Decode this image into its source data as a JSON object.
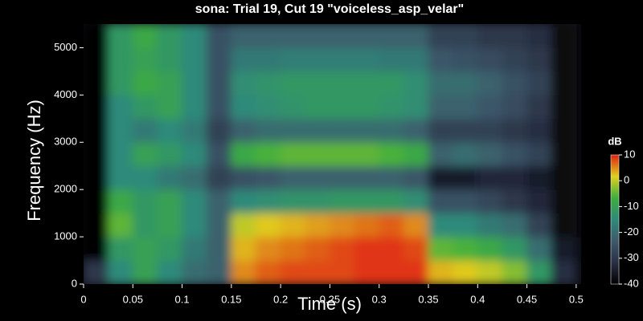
{
  "chart_data": {
    "type": "heatmap",
    "title": "sona: Trial 19, Cut 19 \"voiceless_asp_velar\"",
    "xlabel": "Time (s)",
    "ylabel": "Frequency (Hz)",
    "xlim": [
      0,
      0.505
    ],
    "ylim": [
      0,
      5500
    ],
    "xticks": [
      0,
      0.05,
      0.1,
      0.15,
      0.2,
      0.25,
      0.3,
      0.35,
      0.4,
      0.45,
      0.5
    ],
    "yticks": [
      0,
      1000,
      2000,
      3000,
      4000,
      5000
    ],
    "x": [
      0.0125,
      0.0375,
      0.0625,
      0.0875,
      0.1125,
      0.1375,
      0.1625,
      0.1875,
      0.2125,
      0.2375,
      0.2625,
      0.2875,
      0.3125,
      0.3375,
      0.3625,
      0.3875,
      0.4125,
      0.4375,
      0.4625,
      0.4875
    ],
    "y": [
      250,
      750,
      1250,
      1750,
      2250,
      2750,
      3250,
      3750,
      4250,
      4750,
      5250
    ],
    "z": [
      [
        -30,
        -15,
        -10,
        -15,
        -20,
        -22,
        5,
        7,
        8,
        8,
        8,
        9,
        9,
        9,
        3,
        2,
        0,
        -3,
        -12,
        -32
      ],
      [
        -40,
        -12,
        -10,
        -12,
        -18,
        -22,
        3,
        5,
        6,
        7,
        8,
        9,
        9,
        8,
        -5,
        -6,
        -8,
        -12,
        -20,
        -35
      ],
      [
        -40,
        -5,
        -12,
        -10,
        -15,
        -22,
        0,
        2,
        3,
        4,
        5,
        6,
        7,
        5,
        -15,
        -15,
        -18,
        -20,
        -28,
        -38
      ],
      [
        -40,
        -8,
        -12,
        -10,
        -15,
        -22,
        -15,
        -14,
        -13,
        -13,
        -12,
        -12,
        -12,
        -14,
        -25,
        -25,
        -27,
        -30,
        -33,
        -38
      ],
      [
        -40,
        -15,
        -15,
        -18,
        -20,
        -28,
        -25,
        -24,
        -22,
        -22,
        -22,
        -22,
        -22,
        -24,
        -35,
        -35,
        -33,
        -33,
        -35,
        -38
      ],
      [
        -40,
        -15,
        -10,
        -12,
        -15,
        -25,
        -8,
        -6,
        -5,
        -5,
        -5,
        -5,
        -6,
        -8,
        -22,
        -20,
        -22,
        -25,
        -28,
        -38
      ],
      [
        -40,
        -15,
        -18,
        -15,
        -18,
        -28,
        -22,
        -20,
        -20,
        -20,
        -20,
        -20,
        -20,
        -22,
        -28,
        -28,
        -28,
        -30,
        -32,
        -38
      ],
      [
        -40,
        -15,
        -12,
        -10,
        -15,
        -25,
        -15,
        -14,
        -13,
        -12,
        -12,
        -12,
        -13,
        -14,
        -22,
        -22,
        -24,
        -26,
        -30,
        -38
      ],
      [
        -40,
        -12,
        -8,
        -10,
        -15,
        -25,
        -14,
        -13,
        -12,
        -12,
        -12,
        -12,
        -12,
        -14,
        -20,
        -20,
        -22,
        -25,
        -28,
        -38
      ],
      [
        -40,
        -12,
        -10,
        -12,
        -15,
        -25,
        -18,
        -18,
        -17,
        -17,
        -17,
        -17,
        -18,
        -18,
        -24,
        -25,
        -26,
        -28,
        -30,
        -38
      ],
      [
        -40,
        -12,
        -8,
        -12,
        -15,
        -25,
        -22,
        -22,
        -22,
        -22,
        -22,
        -22,
        -22,
        -22,
        -28,
        -28,
        -30,
        -30,
        -32,
        -38
      ]
    ],
    "clim": [
      -40,
      10
    ],
    "colormap": [
      "#000000",
      "#2a2f45",
      "#3d5a6a",
      "#2e8a7a",
      "#3dae3d",
      "#e0d020",
      "#e02010"
    ],
    "colorbar": {
      "label": "dB",
      "ticks": [
        10,
        0,
        -10,
        -20,
        -30,
        -40
      ]
    }
  }
}
